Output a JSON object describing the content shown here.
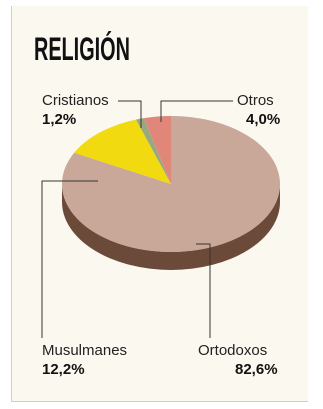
{
  "chart_data": {
    "type": "pie",
    "title": "RELIGIÓN",
    "slices": [
      {
        "label": "Ortodoxos",
        "pct_label": "82,6%",
        "value": 82.6,
        "color": "#c9a89a"
      },
      {
        "label": "Musulmanes",
        "pct_label": "12,2%",
        "value": 12.2,
        "color": "#f2da10"
      },
      {
        "label": "Cristianos",
        "pct_label": "1,2%",
        "value": 1.2,
        "color": "#9aa882"
      },
      {
        "label": "Otros",
        "pct_label": "4,0%",
        "value": 4.0,
        "color": "#e0877a"
      }
    ]
  }
}
